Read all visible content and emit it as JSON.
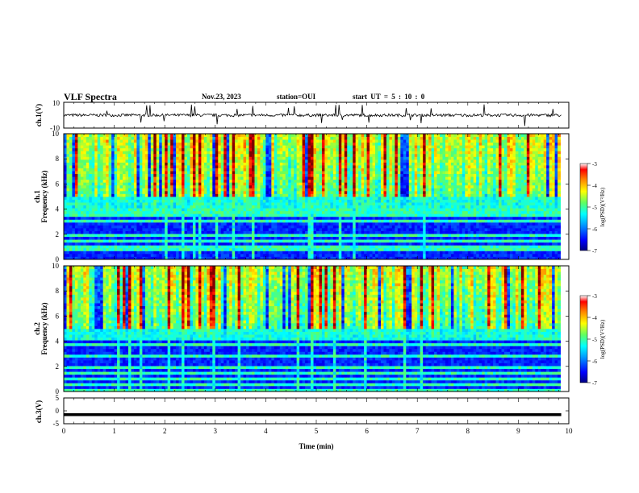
{
  "header": {
    "title": "VLF Spectra",
    "date": "Nov.23, 2023",
    "station": "station=OUI",
    "start_ut": "start  UT =  5 : 10 : 0"
  },
  "chart_data": [
    {
      "type": "line",
      "panel": "ch1-waveform",
      "ylabel": "ch.1(V)",
      "ylim": [
        -10,
        10
      ],
      "yticks": [
        "10",
        "-10"
      ],
      "baseline_v": 0,
      "xlim": [
        0,
        10
      ],
      "data_end_min": 9.85,
      "note_visible": "noisy waveform near 0 V with occasional spikes"
    },
    {
      "type": "heatmap",
      "panel": "ch1-spectrogram",
      "ylabel_line1": "ch.1",
      "ylabel_line2": "Frequency (kHz)",
      "ylim": [
        0,
        10
      ],
      "yticks": [
        "0",
        "2",
        "4",
        "6",
        "8",
        "10"
      ],
      "xlim": [
        0,
        10
      ],
      "colorbar": {
        "label": "log(PSD)(V²/Hz)",
        "range": [
          -7,
          -3
        ],
        "ticks": [
          "-3",
          "-4",
          "-5",
          "-6",
          "-7"
        ]
      }
    },
    {
      "type": "heatmap",
      "panel": "ch2-spectrogram",
      "ylabel_line1": "ch.2",
      "ylabel_line2": "Frequency (kHz)",
      "ylim": [
        0,
        10
      ],
      "yticks": [
        "0",
        "2",
        "4",
        "6",
        "8",
        "10"
      ],
      "xlim": [
        0,
        10
      ],
      "colorbar": {
        "label": "log(PSD)(V²/Hz)",
        "range": [
          -7,
          -3
        ],
        "ticks": [
          "-3",
          "-4",
          "-5",
          "-6",
          "-7"
        ]
      }
    },
    {
      "type": "line",
      "panel": "ch3-waveform",
      "ylabel": "ch.3(V)",
      "ylim": [
        -5,
        5
      ],
      "yticks": [
        "5",
        "0",
        "-5"
      ],
      "level_v": -1.5,
      "xlim": [
        0,
        10
      ],
      "xlabel": "Time (min)",
      "xticks": [
        "0",
        "1",
        "2",
        "3",
        "4",
        "5",
        "6",
        "7",
        "8",
        "9",
        "10"
      ]
    }
  ],
  "colors": {
    "colormap": [
      "#00007f",
      "#0000ff",
      "#0080ff",
      "#00ffff",
      "#80ff80",
      "#ffff00",
      "#ff8000",
      "#ff0000",
      "#7f0000"
    ],
    "frame": "#000000",
    "trace": "#000000"
  }
}
